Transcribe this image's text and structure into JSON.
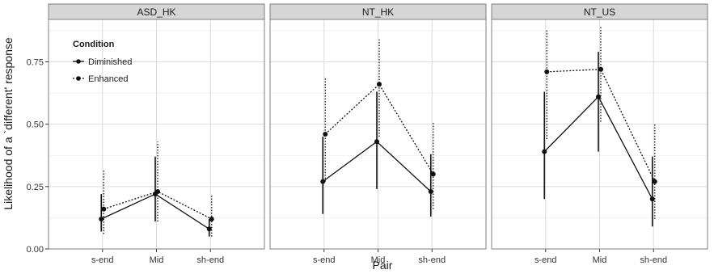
{
  "chart_data": {
    "type": "line",
    "xlabel": "Pair",
    "ylabel": "Likelihood of a `different' response",
    "categories": [
      "s-end",
      "Mid",
      "sh-end"
    ],
    "ylim": [
      0,
      0.92
    ],
    "yticks": [
      0.0,
      0.25,
      0.5,
      0.75
    ],
    "ytick_labels": [
      "0.00",
      "0.25",
      "0.50",
      "0.75"
    ],
    "grid": true,
    "legend": {
      "title": "Condition",
      "placement": "top-left",
      "entries": [
        {
          "name": "Diminished",
          "linestyle": "solid"
        },
        {
          "name": "Enhanced",
          "linestyle": "dotted"
        }
      ]
    },
    "panels": [
      {
        "label": "ASD_HK",
        "series": [
          {
            "name": "Diminished",
            "values": [
              0.12,
              0.22,
              0.08
            ],
            "lower": [
              0.07,
              0.11,
              0.05
            ],
            "upper": [
              0.22,
              0.37,
              0.12
            ]
          },
          {
            "name": "Enhanced",
            "values": [
              0.16,
              0.23,
              0.12
            ],
            "lower": [
              0.06,
              0.11,
              0.05
            ],
            "upper": [
              0.32,
              0.43,
              0.22
            ]
          }
        ]
      },
      {
        "label": "NT_HK",
        "series": [
          {
            "name": "Diminished",
            "values": [
              0.27,
              0.43,
              0.23
            ],
            "lower": [
              0.14,
              0.24,
              0.13
            ],
            "upper": [
              0.45,
              0.63,
              0.38
            ]
          },
          {
            "name": "Enhanced",
            "values": [
              0.46,
              0.66,
              0.3
            ],
            "lower": [
              0.27,
              0.45,
              0.16
            ],
            "upper": [
              0.69,
              0.84,
              0.51
            ]
          }
        ]
      },
      {
        "label": "NT_US",
        "series": [
          {
            "name": "Diminished",
            "values": [
              0.39,
              0.61,
              0.2
            ],
            "lower": [
              0.2,
              0.39,
              0.09
            ],
            "upper": [
              0.63,
              0.79,
              0.37
            ]
          },
          {
            "name": "Enhanced",
            "values": [
              0.71,
              0.72,
              0.27
            ],
            "lower": [
              0.44,
              0.51,
              0.12
            ],
            "upper": [
              0.88,
              0.89,
              0.5
            ]
          }
        ]
      }
    ]
  }
}
